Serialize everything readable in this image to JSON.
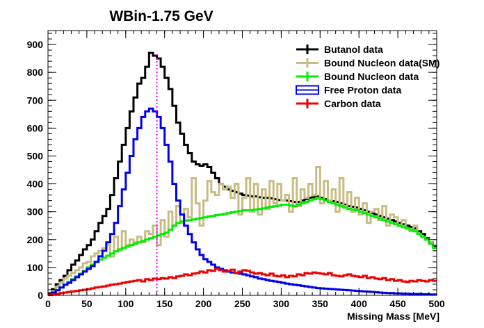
{
  "chart_data": {
    "type": "line",
    "title": "WBin-1.75 GeV",
    "xlabel": "Missing Mass [MeV]",
    "ylabel": "",
    "xlim": [
      0,
      500
    ],
    "ylim": [
      0,
      950
    ],
    "x_ticks": [
      0,
      50,
      100,
      150,
      200,
      250,
      300,
      350,
      400,
      450,
      500
    ],
    "y_ticks": [
      0,
      100,
      200,
      300,
      400,
      500,
      600,
      700,
      800,
      900
    ],
    "grid": false,
    "legend_position": "top-right",
    "reference_line": {
      "x": 140,
      "style": "dotted",
      "color": "#ff00ff"
    },
    "series": [
      {
        "name": "Butanol data",
        "color": "#000000",
        "style": "step",
        "x": [
          0,
          5,
          10,
          15,
          20,
          25,
          30,
          35,
          40,
          45,
          50,
          55,
          60,
          65,
          70,
          75,
          80,
          85,
          90,
          95,
          100,
          105,
          110,
          115,
          120,
          125,
          130,
          135,
          140,
          145,
          150,
          155,
          160,
          165,
          170,
          175,
          180,
          185,
          190,
          195,
          200,
          205,
          210,
          215,
          220,
          225,
          230,
          235,
          240,
          245,
          250,
          255,
          260,
          265,
          270,
          275,
          280,
          285,
          290,
          295,
          300,
          305,
          310,
          315,
          320,
          325,
          330,
          335,
          340,
          345,
          350,
          355,
          360,
          365,
          370,
          375,
          380,
          385,
          390,
          395,
          400,
          405,
          410,
          415,
          420,
          425,
          430,
          435,
          440,
          445,
          450,
          455,
          460,
          465,
          470,
          475,
          480,
          485,
          490,
          495
        ],
        "values": [
          8,
          22,
          40,
          55,
          70,
          90,
          110,
          125,
          145,
          165,
          180,
          200,
          230,
          260,
          285,
          310,
          360,
          420,
          480,
          540,
          600,
          660,
          710,
          760,
          780,
          820,
          870,
          860,
          850,
          820,
          780,
          740,
          680,
          620,
          580,
          540,
          510,
          480,
          470,
          465,
          470,
          460,
          440,
          420,
          400,
          390,
          380,
          375,
          370,
          365,
          360,
          358,
          355,
          355,
          352,
          350,
          350,
          348,
          345,
          342,
          340,
          340,
          338,
          335,
          335,
          340,
          345,
          350,
          352,
          355,
          350,
          345,
          340,
          338,
          335,
          330,
          325,
          320,
          318,
          315,
          310,
          305,
          300,
          295,
          290,
          285,
          280,
          275,
          270,
          265,
          260,
          255,
          250,
          245,
          240,
          230,
          220,
          205,
          190,
          175
        ]
      },
      {
        "name": "Bound Nucleon data(SM)",
        "color": "#c8bc82",
        "style": "step",
        "x": [
          0,
          5,
          10,
          15,
          20,
          25,
          30,
          35,
          40,
          45,
          50,
          55,
          60,
          65,
          70,
          75,
          80,
          85,
          90,
          95,
          100,
          105,
          110,
          115,
          120,
          125,
          130,
          135,
          140,
          145,
          150,
          155,
          160,
          165,
          170,
          175,
          180,
          185,
          190,
          195,
          200,
          205,
          210,
          215,
          220,
          225,
          230,
          235,
          240,
          245,
          250,
          255,
          260,
          265,
          270,
          275,
          280,
          285,
          290,
          295,
          300,
          305,
          310,
          315,
          320,
          325,
          330,
          335,
          340,
          345,
          350,
          355,
          360,
          365,
          370,
          375,
          380,
          385,
          390,
          395,
          400,
          405,
          410,
          415,
          420,
          425,
          430,
          435,
          440,
          445,
          450,
          455,
          460,
          465,
          470,
          475,
          480,
          485,
          490,
          495
        ],
        "values": [
          5,
          15,
          30,
          45,
          60,
          70,
          80,
          90,
          100,
          115,
          120,
          140,
          150,
          160,
          170,
          180,
          140,
          210,
          160,
          230,
          180,
          200,
          190,
          210,
          190,
          230,
          220,
          250,
          180,
          270,
          210,
          300,
          250,
          320,
          260,
          310,
          280,
          420,
          330,
          250,
          340,
          410,
          370,
          360,
          400,
          380,
          390,
          350,
          400,
          290,
          350,
          420,
          300,
          400,
          290,
          380,
          310,
          410,
          330,
          400,
          340,
          360,
          300,
          420,
          320,
          380,
          350,
          400,
          360,
          460,
          330,
          410,
          340,
          380,
          300,
          420,
          320,
          370,
          300,
          350,
          290,
          330,
          260,
          300,
          310,
          270,
          320,
          250,
          290,
          280,
          250,
          270,
          240,
          230,
          250,
          220,
          210,
          200,
          190,
          170
        ]
      },
      {
        "name": "Bound Nucleon data",
        "color": "#00ee00",
        "style": "step",
        "x": [
          0,
          5,
          10,
          15,
          20,
          25,
          30,
          35,
          40,
          45,
          50,
          55,
          60,
          65,
          70,
          75,
          80,
          85,
          90,
          95,
          100,
          105,
          110,
          115,
          120,
          125,
          130,
          135,
          140,
          145,
          150,
          155,
          160,
          165,
          170,
          175,
          180,
          185,
          190,
          195,
          200,
          205,
          210,
          215,
          220,
          225,
          230,
          235,
          240,
          245,
          250,
          255,
          260,
          265,
          270,
          275,
          280,
          285,
          290,
          295,
          300,
          305,
          310,
          315,
          320,
          325,
          330,
          335,
          340,
          345,
          350,
          355,
          360,
          365,
          370,
          375,
          380,
          385,
          390,
          395,
          400,
          405,
          410,
          415,
          420,
          425,
          430,
          435,
          440,
          445,
          450,
          455,
          460,
          465,
          470,
          475,
          480,
          485,
          490,
          495
        ],
        "values": [
          3,
          10,
          18,
          28,
          38,
          48,
          58,
          68,
          78,
          88,
          100,
          110,
          120,
          128,
          135,
          142,
          150,
          158,
          165,
          170,
          175,
          180,
          185,
          190,
          195,
          200,
          205,
          210,
          215,
          220,
          225,
          235,
          250,
          260,
          265,
          268,
          270,
          272,
          275,
          278,
          280,
          283,
          285,
          288,
          290,
          292,
          295,
          298,
          300,
          302,
          305,
          305,
          305,
          308,
          310,
          312,
          315,
          318,
          320,
          322,
          325,
          325,
          322,
          320,
          325,
          330,
          335,
          340,
          345,
          350,
          345,
          340,
          335,
          330,
          325,
          320,
          315,
          310,
          308,
          305,
          300,
          295,
          290,
          285,
          280,
          275,
          270,
          265,
          260,
          255,
          250,
          245,
          240,
          235,
          230,
          220,
          210,
          200,
          185,
          170
        ]
      },
      {
        "name": "Free Proton data",
        "color": "#0000ee",
        "style": "step",
        "x": [
          0,
          5,
          10,
          15,
          20,
          25,
          30,
          35,
          40,
          45,
          50,
          55,
          60,
          65,
          70,
          75,
          80,
          85,
          90,
          95,
          100,
          105,
          110,
          115,
          120,
          125,
          130,
          135,
          140,
          145,
          150,
          155,
          160,
          165,
          170,
          175,
          180,
          185,
          190,
          195,
          200,
          205,
          210,
          215,
          220,
          225,
          230,
          235,
          240,
          245,
          250,
          255,
          260,
          265,
          270,
          275,
          280,
          285,
          290,
          295,
          300,
          305,
          310,
          315,
          320,
          325,
          330,
          335,
          340,
          345,
          350,
          355,
          360,
          365,
          370,
          375,
          380,
          385,
          390,
          395,
          400,
          405,
          410,
          415,
          420,
          425,
          430,
          435,
          440,
          445,
          450,
          455,
          460,
          465,
          470,
          475,
          480,
          485,
          490,
          495
        ],
        "values": [
          4,
          10,
          18,
          28,
          38,
          45,
          55,
          65,
          75,
          85,
          95,
          105,
          120,
          140,
          160,
          190,
          220,
          260,
          320,
          380,
          440,
          500,
          560,
          600,
          640,
          660,
          670,
          660,
          640,
          600,
          540,
          480,
          400,
          340,
          290,
          250,
          220,
          190,
          165,
          145,
          130,
          120,
          110,
          100,
          95,
          90,
          85,
          82,
          80,
          78,
          75,
          72,
          68,
          65,
          60,
          58,
          55,
          52,
          50,
          48,
          45,
          42,
          40,
          38,
          36,
          34,
          32,
          30,
          28,
          26,
          25,
          24,
          23,
          22,
          21,
          20,
          19,
          18,
          17,
          16,
          15,
          14,
          13,
          12,
          11,
          10,
          9,
          8,
          8,
          7,
          7,
          6,
          6,
          5,
          5,
          5,
          4,
          4,
          3,
          3
        ]
      },
      {
        "name": "Carbon data",
        "color": "#ee0000",
        "style": "step",
        "x": [
          0,
          5,
          10,
          15,
          20,
          25,
          30,
          35,
          40,
          45,
          50,
          55,
          60,
          65,
          70,
          75,
          80,
          85,
          90,
          95,
          100,
          105,
          110,
          115,
          120,
          125,
          130,
          135,
          140,
          145,
          150,
          155,
          160,
          165,
          170,
          175,
          180,
          185,
          190,
          195,
          200,
          205,
          210,
          215,
          220,
          225,
          230,
          235,
          240,
          245,
          250,
          255,
          260,
          265,
          270,
          275,
          280,
          285,
          290,
          295,
          300,
          305,
          310,
          315,
          320,
          325,
          330,
          335,
          340,
          345,
          350,
          355,
          360,
          365,
          370,
          375,
          380,
          385,
          390,
          395,
          400,
          405,
          410,
          415,
          420,
          425,
          430,
          435,
          440,
          445,
          450,
          455,
          460,
          465,
          470,
          475,
          480,
          485,
          490,
          495
        ],
        "values": [
          1,
          3,
          5,
          8,
          10,
          12,
          14,
          16,
          18,
          20,
          22,
          25,
          28,
          30,
          32,
          35,
          38,
          40,
          42,
          45,
          48,
          50,
          52,
          55,
          50,
          58,
          55,
          60,
          58,
          62,
          60,
          65,
          62,
          68,
          70,
          75,
          72,
          78,
          80,
          85,
          82,
          90,
          88,
          95,
          90,
          85,
          88,
          92,
          80,
          85,
          90,
          88,
          82,
          78,
          80,
          75,
          72,
          78,
          70,
          68,
          72,
          65,
          70,
          68,
          75,
          72,
          80,
          78,
          82,
          80,
          78,
          75,
          80,
          72,
          70,
          68,
          72,
          75,
          70,
          68,
          65,
          70,
          62,
          65,
          60,
          58,
          62,
          55,
          58,
          52,
          55,
          50,
          48,
          52,
          50,
          55,
          52,
          50,
          55,
          52
        ]
      }
    ]
  }
}
